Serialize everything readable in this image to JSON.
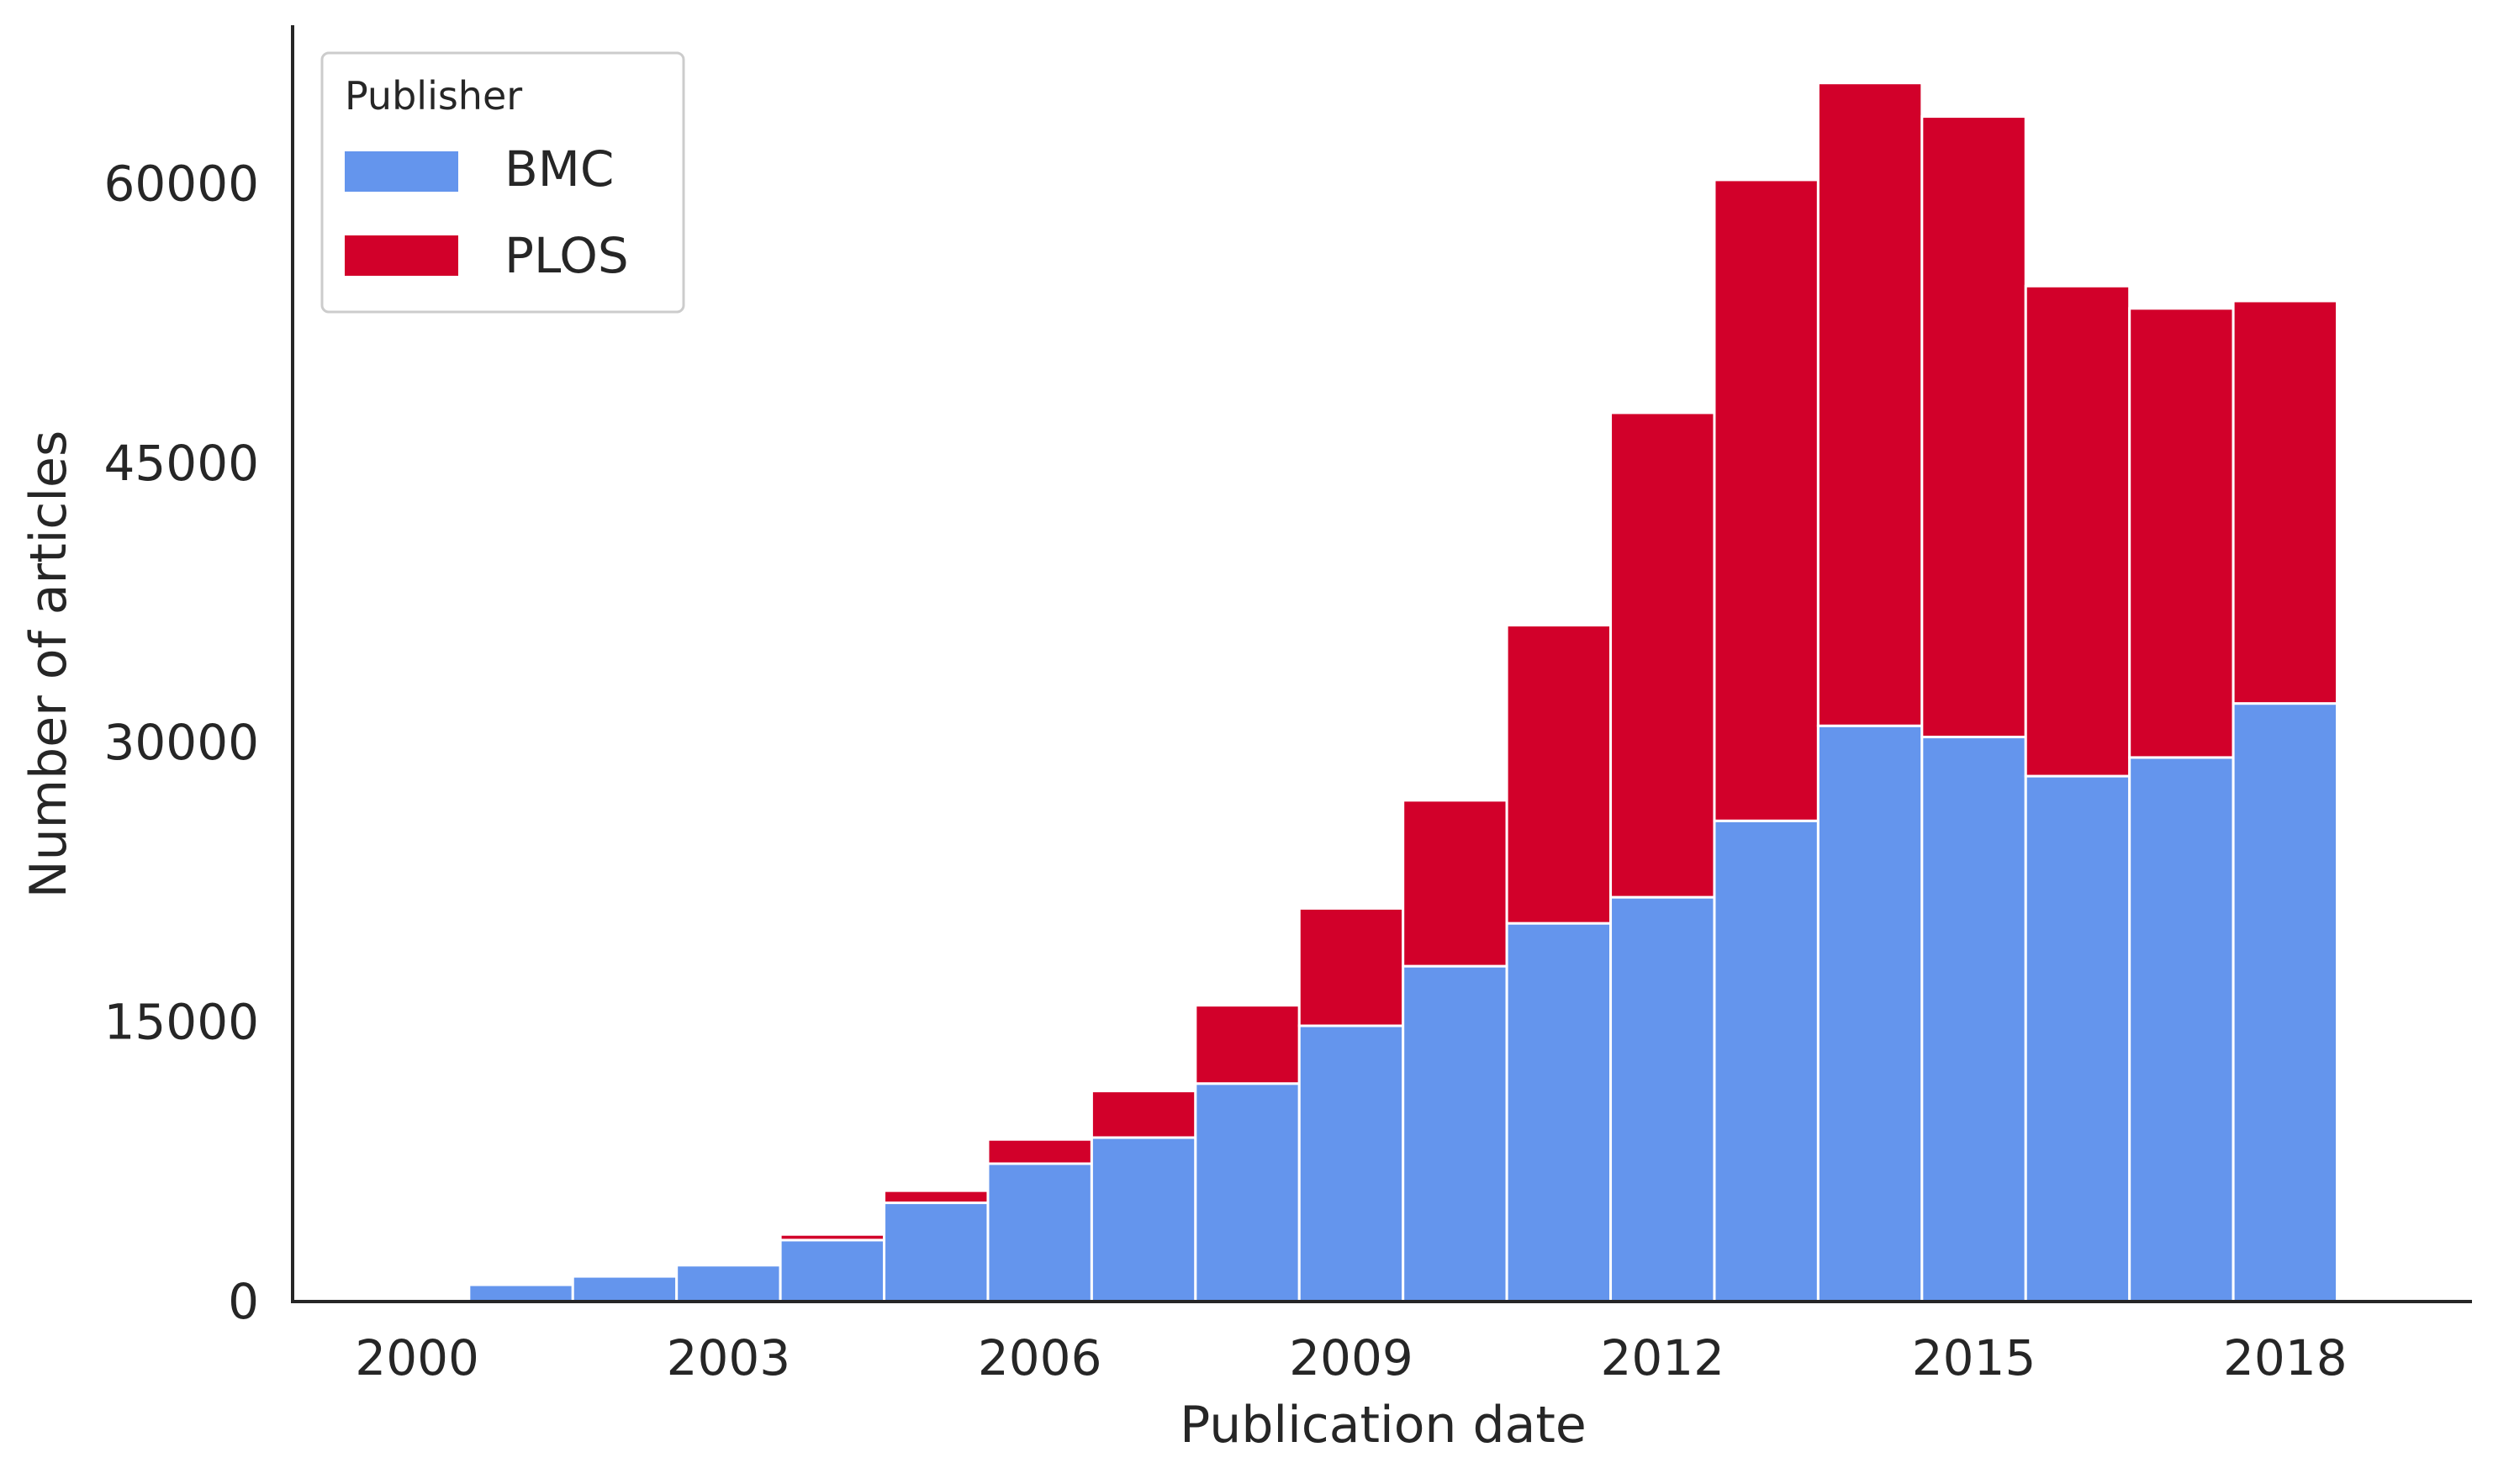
{
  "chart_data": {
    "type": "bar",
    "stacked": true,
    "xlabel": "Publication date",
    "ylabel": "Number of articles",
    "x": [
      2000,
      2001,
      2002,
      2003,
      2004,
      2005,
      2006,
      2007,
      2008,
      2009,
      2010,
      2011,
      2012,
      2013,
      2014,
      2015,
      2016,
      2017,
      2018
    ],
    "x_ticks": [
      2000,
      2003,
      2006,
      2009,
      2012,
      2015,
      2018
    ],
    "x_tick_labels": [
      "2000",
      "2003",
      "2006",
      "2009",
      "2012",
      "2015",
      "2018"
    ],
    "xlim": [
      1998.8,
      2019.8
    ],
    "y_ticks": [
      0,
      15000,
      30000,
      45000,
      60000
    ],
    "y_tick_labels": [
      "0",
      "15000",
      "30000",
      "45000",
      "60000"
    ],
    "ylim": [
      0,
      68500
    ],
    "series": [
      {
        "name": "BMC",
        "color": "#6495ED",
        "values": [
          150,
          900,
          1350,
          1950,
          3300,
          5300,
          7400,
          8800,
          11700,
          14800,
          18000,
          20300,
          21700,
          25800,
          30900,
          30300,
          28200,
          29200,
          32100
        ]
      },
      {
        "name": "PLOS",
        "color": "#D2002A",
        "values": [
          0,
          0,
          0,
          0,
          300,
          650,
          1300,
          2500,
          4200,
          6300,
          8900,
          16000,
          26000,
          34400,
          34500,
          33300,
          26300,
          24100,
          21600
        ]
      }
    ],
    "legend": {
      "title": "Publisher",
      "placement": "top-left",
      "entries": [
        "BMC",
        "PLOS"
      ]
    },
    "grid": false
  }
}
